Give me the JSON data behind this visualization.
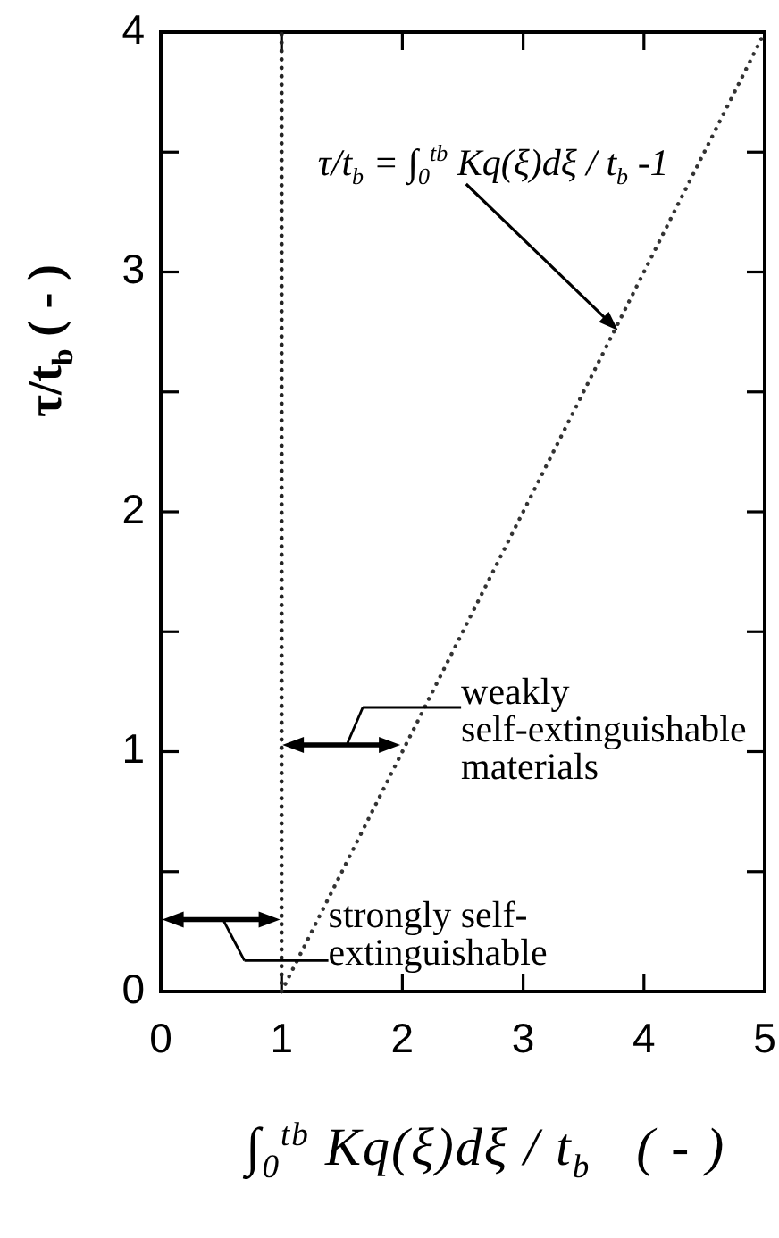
{
  "chart_data": {
    "type": "line",
    "xlabel": "∫$_{0}$$^{tb}$ Kq(ξ)dξ / t$_{b}$   ( - )",
    "ylabel": "τ/t$_{b}$ ( - )",
    "series": [
      {
        "color": "#333333",
        "x": [
          1,
          5
        ],
        "values": [
          0,
          4
        ]
      }
    ],
    "xlim": [
      0,
      5
    ],
    "ylim": [
      0,
      4
    ],
    "xticks": [
      0,
      1,
      2,
      3,
      4,
      5
    ],
    "yticks": [
      0,
      {
        "value": 0.5,
        "label": null
      },
      1,
      {
        "value": 1.5,
        "label": null
      },
      2,
      {
        "value": 2.5,
        "label": null
      },
      3,
      {
        "value": 3.5,
        "label": null
      },
      4
    ],
    "line_style": "dotted",
    "ref_lines": [
      {
        "axis": "x",
        "value": 1,
        "color": "#222222",
        "line_style": "dotted"
      }
    ],
    "annotations": [
      "τ/t$_{b}$ = ∫$_{0}$$^{tb}$ Kq(ξ)dξ / t$_{b}$ -1",
      "weakly\nself-extinguishable\nmaterials",
      "strongly self-\nextinguishable"
    ]
  }
}
